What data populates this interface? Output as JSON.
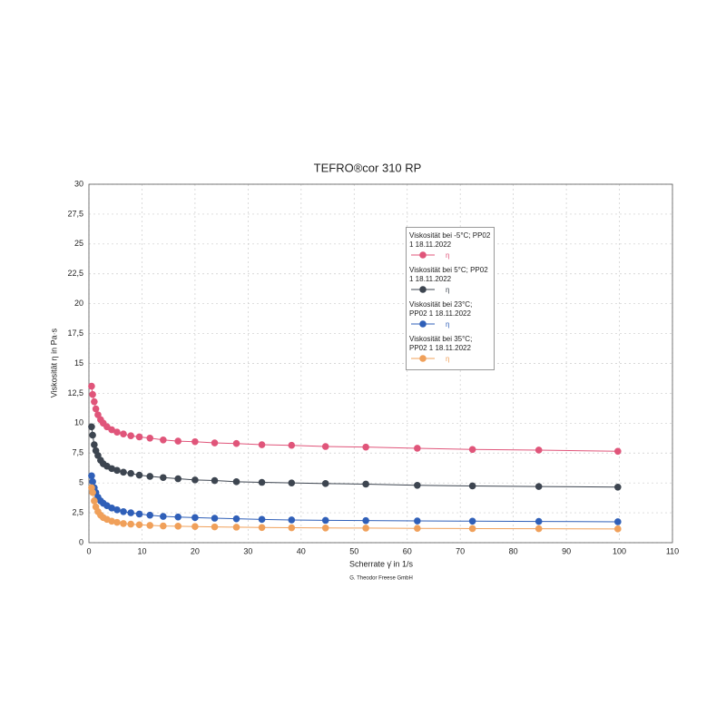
{
  "chart_data": {
    "type": "line",
    "title": "TEFRO®cor 310 RP",
    "x_label": "Scherrate γ̇ in 1/s",
    "y_label": "Viskosität η in Pa·s",
    "footer": "G. Theodor Freese GmbH",
    "legend_symbol": "η",
    "x": [
      0.5,
      0.7,
      1,
      1.3,
      1.7,
      2.2,
      2.7,
      3.4,
      4.3,
      5.3,
      6.5,
      7.9,
      9.5,
      11.5,
      14,
      16.8,
      20,
      23.7,
      27.8,
      32.6,
      38.2,
      44.6,
      52.2,
      61.9,
      72.3,
      84.8,
      99.7
    ],
    "series": [
      {
        "name": "Viskosität bei -5°C; PP02 1 18.11.2022",
        "color": "#e0557a",
        "values": [
          13.1,
          12.4,
          11.8,
          11.2,
          10.7,
          10.3,
          10.0,
          9.7,
          9.45,
          9.25,
          9.1,
          8.95,
          8.85,
          8.75,
          8.6,
          8.5,
          8.45,
          8.35,
          8.3,
          8.2,
          8.15,
          8.05,
          8.0,
          7.9,
          7.8,
          7.75,
          7.65
        ]
      },
      {
        "name": "Viskosität bei 5°C; PP02 1 18.11.2022",
        "color": "#3d4550",
        "values": [
          9.7,
          9.0,
          8.2,
          7.7,
          7.3,
          6.9,
          6.6,
          6.4,
          6.2,
          6.05,
          5.9,
          5.8,
          5.65,
          5.55,
          5.45,
          5.35,
          5.25,
          5.2,
          5.1,
          5.05,
          5.0,
          4.95,
          4.9,
          4.8,
          4.75,
          4.7,
          4.65
        ]
      },
      {
        "name": "Viskosität bei 23°C; PP02 1 18.11.2022",
        "color": "#2f5fb8",
        "values": [
          5.6,
          5.1,
          4.6,
          4.2,
          3.8,
          3.5,
          3.3,
          3.1,
          2.9,
          2.75,
          2.6,
          2.5,
          2.4,
          2.3,
          2.2,
          2.15,
          2.1,
          2.05,
          2.0,
          1.95,
          1.9,
          1.87,
          1.85,
          1.82,
          1.8,
          1.78,
          1.75
        ]
      },
      {
        "name": "Viskosität bei 35°C; PP02 1 18.11.2022",
        "color": "#f0a05a",
        "values": [
          4.6,
          4.2,
          3.5,
          3.0,
          2.6,
          2.3,
          2.1,
          1.95,
          1.8,
          1.7,
          1.6,
          1.55,
          1.5,
          1.45,
          1.4,
          1.38,
          1.35,
          1.32,
          1.3,
          1.27,
          1.25,
          1.23,
          1.22,
          1.2,
          1.18,
          1.17,
          1.15
        ]
      }
    ],
    "xlim": [
      0,
      110
    ],
    "xticks": [
      0,
      10,
      20,
      30,
      40,
      50,
      60,
      70,
      80,
      90,
      100,
      110
    ],
    "ylim": [
      0,
      30
    ],
    "yticks": [
      0,
      {
        "value": 2.5,
        "label": "2,5"
      },
      5,
      {
        "value": 7.5,
        "label": "7,5"
      },
      10,
      {
        "value": 12.5,
        "label": "12,5"
      },
      15,
      {
        "value": 17.5,
        "label": "17,5"
      },
      20,
      {
        "value": 22.5,
        "label": "22,5"
      },
      25,
      {
        "value": 27.5,
        "label": "27,5"
      },
      30
    ],
    "grid": true
  }
}
